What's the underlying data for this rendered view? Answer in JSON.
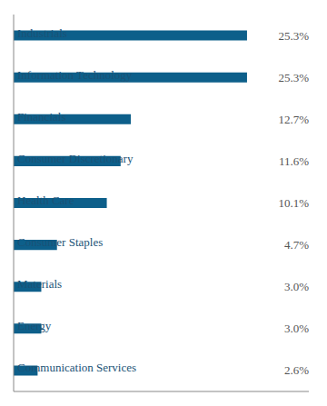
{
  "chart_data": {
    "type": "bar",
    "orientation": "horizontal",
    "categories": [
      "Industrials",
      "Information Technology",
      "Financials",
      "Consumer Discretionary",
      "Health Care",
      "Consumer Staples",
      "Materials",
      "Energy",
      "Communication Services"
    ],
    "values": [
      25.3,
      25.3,
      12.7,
      11.6,
      10.1,
      4.7,
      3.0,
      3.0,
      2.6
    ],
    "value_labels": [
      "25.3%",
      "25.3%",
      "12.7%",
      "11.6%",
      "10.1%",
      "4.7%",
      "3.0%",
      "3.0%",
      "2.6%"
    ],
    "color": "#0d5f8a",
    "xlim": [
      0,
      32
    ],
    "data_labels": true,
    "tick_labels": "y"
  }
}
